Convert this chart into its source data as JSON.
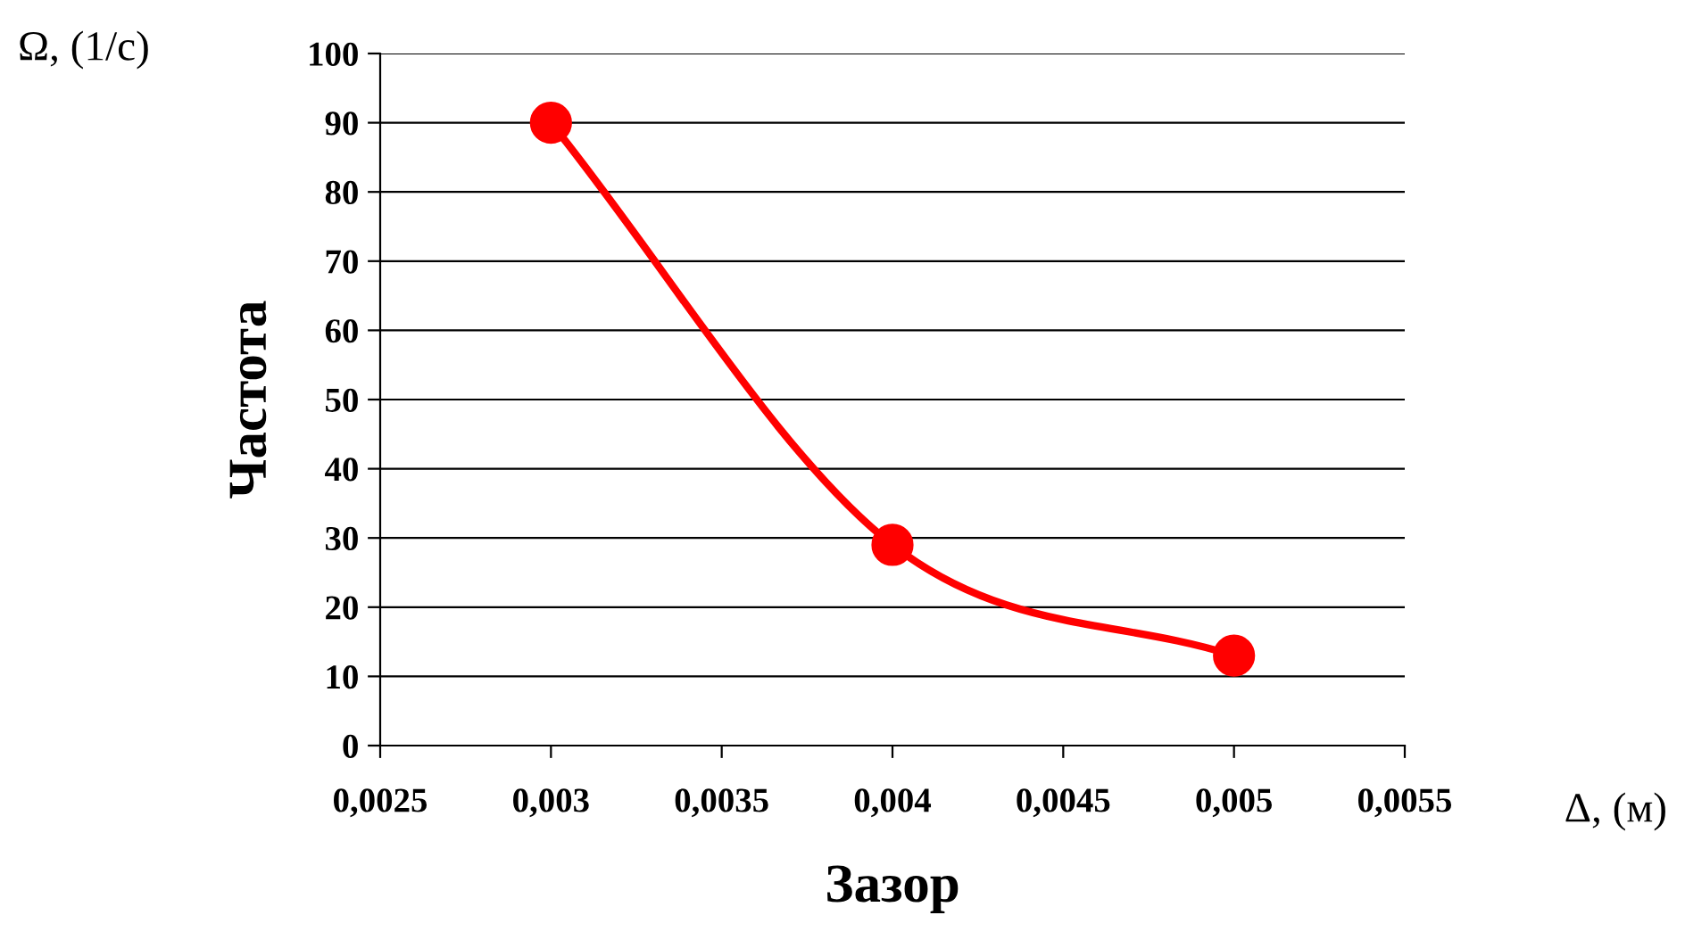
{
  "chart_data": {
    "type": "line",
    "xlabel": "Зазор",
    "ylabel": "Частота",
    "annotations": [
      "Ω, (1/с)",
      "Δ, (м)"
    ],
    "x": [
      0.003,
      0.004,
      0.005
    ],
    "series": [
      {
        "color": "#ff0000",
        "values": [
          90,
          29,
          13
        ]
      }
    ],
    "xlim": [
      0.0025,
      0.0055
    ],
    "xticks": [
      {
        "value": 0.0025,
        "label": "0,0025"
      },
      {
        "value": 0.003,
        "label": "0,003"
      },
      {
        "value": 0.0035,
        "label": "0,0035"
      },
      {
        "value": 0.004,
        "label": "0,004"
      },
      {
        "value": 0.0045,
        "label": "0,0045"
      },
      {
        "value": 0.005,
        "label": "0,005"
      },
      {
        "value": 0.0055,
        "label": "0,0055"
      }
    ],
    "ylim": [
      0,
      100
    ],
    "yticks": [
      0,
      10,
      20,
      30,
      40,
      50,
      60,
      70,
      80,
      90,
      100
    ],
    "grid": "y",
    "marker": "circle",
    "line_style": "solid",
    "legend": false
  }
}
